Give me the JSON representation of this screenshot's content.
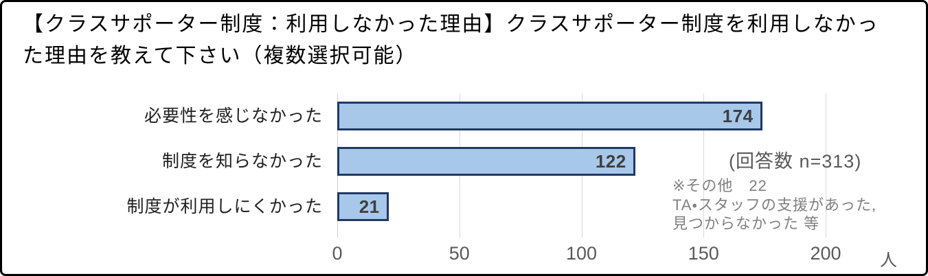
{
  "title": {
    "line1": "【クラスサポーター制度：利用しなかった理由】クラスサポーター制度を利用しなかっ",
    "line2": "た理由を教えて下さい（複数選択可能）"
  },
  "annotations": {
    "response_count": "(回答数 n=313)",
    "other_lines": [
      "※その他　22",
      "TA・スタッフの支援があった,",
      "見つからなかった 等"
    ]
  },
  "chart_data": {
    "type": "bar",
    "orientation": "horizontal",
    "title": "【クラスサポーター制度：利用しなかった理由】クラスサポーター制度を利用しなかった理由を教えて下さい（複数選択可能）",
    "categories": [
      "必要性を感じなかった",
      "制度を知らなかった",
      "制度が利用しにくかった"
    ],
    "values": [
      174,
      122,
      21
    ],
    "x_ticks": [
      0,
      50,
      100,
      150,
      200
    ],
    "xlim": [
      0,
      230
    ],
    "unit": "人",
    "grid": true,
    "legend": "none",
    "annotations": [
      "(回答数 n=313)",
      "※その他　22",
      "TA・スタッフの支援があった,",
      "見つからなかった 等"
    ]
  },
  "colors": {
    "bar_fill": "#A8C8EA",
    "bar_border": "#1F3864",
    "gridline": "#D9D9D9",
    "axis_text": "#595959",
    "value_text": "#3F3F3F",
    "category_text": "#1F1F1F",
    "note_text": "#808080",
    "frame_border": "#000000"
  }
}
